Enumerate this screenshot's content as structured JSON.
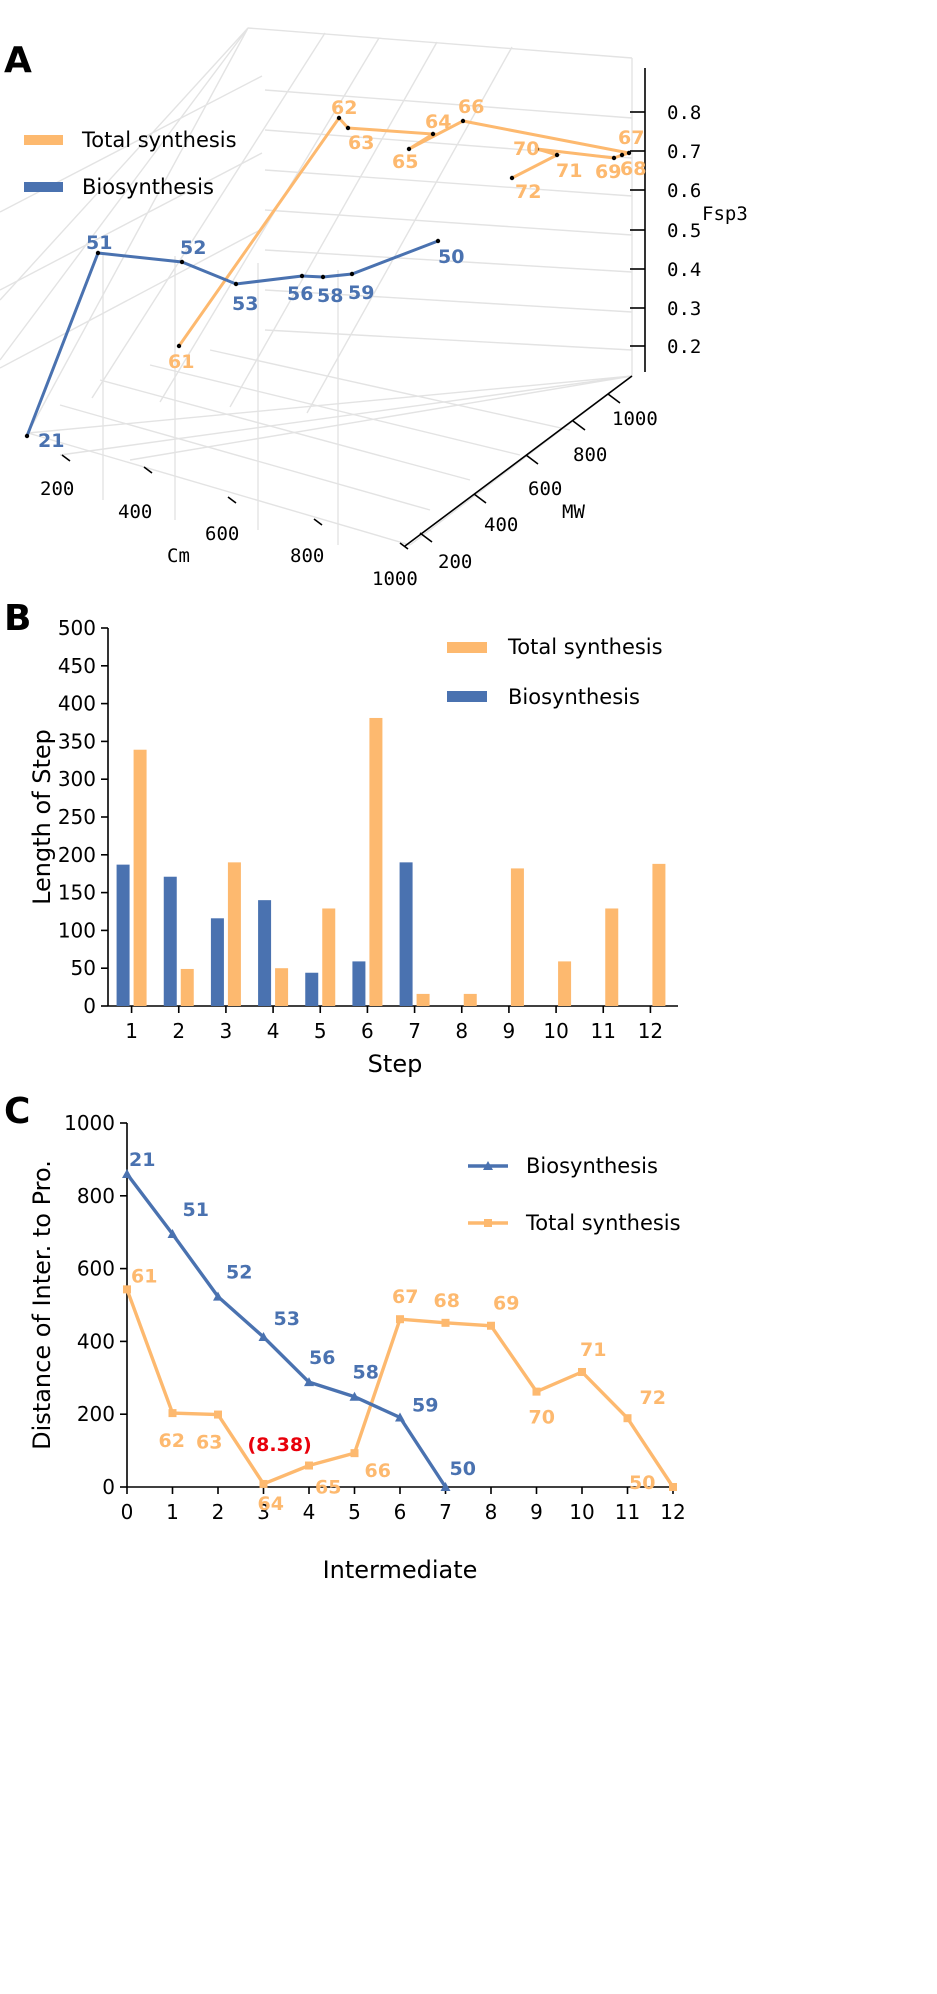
{
  "colors": {
    "total": "#FDB96F",
    "bio": "#4A72B0",
    "highlight": "#E8000B",
    "grid": "#E3E3E3"
  },
  "panels": {
    "a": "A",
    "b": "B",
    "c": "C"
  },
  "chart_data": [
    {
      "panel": "A",
      "type": "line3d",
      "axes": {
        "x": "Cm",
        "y": "MW",
        "z": "Fsp3"
      },
      "x_ticks": [
        "200",
        "400",
        "600",
        "800",
        "1000"
      ],
      "y_ticks": [
        "200",
        "400",
        "600",
        "800",
        "1000"
      ],
      "z_ticks": [
        "0.2",
        "0.3",
        "0.4",
        "0.5",
        "0.6",
        "0.7",
        "0.8"
      ],
      "legend": [
        "Total synthesis",
        "Biosynthesis"
      ],
      "series": [
        {
          "name": "Total synthesis",
          "points": [
            "61",
            "62",
            "63",
            "64",
            "65",
            "66",
            "67",
            "68",
            "69",
            "70",
            "71",
            "72"
          ]
        },
        {
          "name": "Biosynthesis",
          "points": [
            "21",
            "51",
            "52",
            "53",
            "56",
            "58",
            "59",
            "50"
          ]
        }
      ]
    },
    {
      "panel": "B",
      "type": "bar",
      "xlabel": "Step",
      "ylabel": "Length of Step",
      "ylim": [
        0,
        500
      ],
      "yticks": [
        "0",
        "50",
        "100",
        "150",
        "200",
        "250",
        "300",
        "350",
        "400",
        "450",
        "500"
      ],
      "categories": [
        "1",
        "2",
        "3",
        "4",
        "5",
        "6",
        "7",
        "8",
        "9",
        "10",
        "11",
        "12"
      ],
      "series": [
        {
          "name": "Biosynthesis",
          "values": [
            187,
            171,
            116,
            140,
            44,
            59,
            190,
            null,
            null,
            null,
            null,
            null
          ]
        },
        {
          "name": "Total synthesis",
          "values": [
            339,
            49,
            190,
            50,
            129,
            381,
            16,
            16,
            182,
            59,
            129,
            188
          ]
        }
      ],
      "legend": "top-right"
    },
    {
      "panel": "C",
      "type": "line",
      "xlabel": "Intermediate",
      "ylabel": "Distance of Inter. to Pro.",
      "ylim": [
        0,
        1000
      ],
      "xlim": [
        0,
        12
      ],
      "yticks": [
        "0",
        "200",
        "400",
        "600",
        "800",
        "1000"
      ],
      "xticks": [
        "0",
        "1",
        "2",
        "3",
        "4",
        "5",
        "6",
        "7",
        "8",
        "9",
        "10",
        "11",
        "12"
      ],
      "series": [
        {
          "name": "Biosynthesis",
          "x": [
            0,
            1,
            2,
            3,
            4,
            5,
            6,
            7
          ],
          "y": [
            860,
            695,
            523,
            412,
            288,
            248,
            191,
            0
          ],
          "labels": [
            "21",
            "51",
            "52",
            "53",
            "56",
            "58",
            "59",
            "50"
          ]
        },
        {
          "name": "Total synthesis",
          "x": [
            0,
            1,
            2,
            3,
            4,
            5,
            6,
            7,
            8,
            9,
            10,
            11,
            12
          ],
          "y": [
            543,
            203,
            199,
            8.38,
            59,
            93,
            461,
            451,
            443,
            262,
            316,
            189,
            0
          ],
          "labels": [
            "61",
            "62",
            "63",
            "64",
            "65",
            "66",
            "67",
            "68",
            "69",
            "70",
            "71",
            "72",
            "50"
          ]
        }
      ],
      "annotation": "(8.38)",
      "legend": "top-right"
    }
  ]
}
